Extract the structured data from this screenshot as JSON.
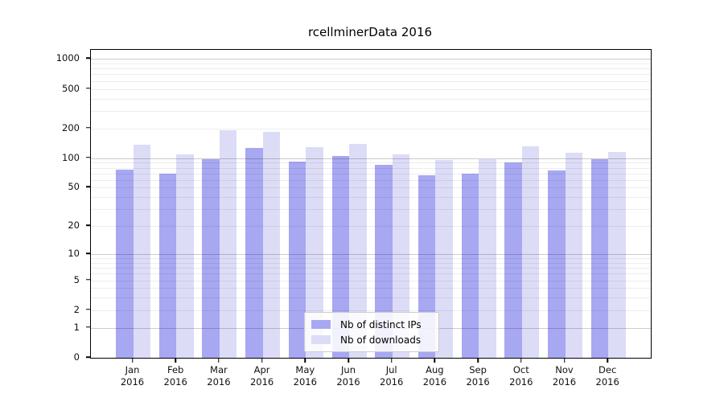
{
  "chart_data": {
    "type": "bar",
    "title": "rcellminerData 2016",
    "categories": [
      "Jan 2016",
      "Feb 2016",
      "Mar 2016",
      "Apr 2016",
      "May 2016",
      "Jun 2016",
      "Jul 2016",
      "Aug 2016",
      "Sep 2016",
      "Oct 2016",
      "Nov 2016",
      "Dec 2016"
    ],
    "series": [
      {
        "name": "Nb of distinct IPs",
        "color": "#a7a7f2",
        "values": [
          77,
          69,
          97,
          128,
          93,
          105,
          85,
          67,
          69,
          91,
          75,
          97
        ]
      },
      {
        "name": "Nb of downloads",
        "color": "#dcdcf7",
        "values": [
          137,
          110,
          192,
          183,
          130,
          139,
          110,
          96,
          98,
          131,
          113,
          115
        ]
      }
    ],
    "y_axis": {
      "scale": "log1p",
      "tick_values": [
        0,
        1,
        2,
        5,
        10,
        20,
        50,
        100,
        200,
        500,
        1000
      ],
      "tick_labels": [
        "0",
        "1",
        "2",
        "5",
        "10",
        "20",
        "50",
        "100",
        "200",
        "500",
        "1000"
      ],
      "range": [
        0,
        1000
      ]
    },
    "grid": {
      "minor_values": [
        2,
        3,
        4,
        5,
        6,
        7,
        8,
        9,
        20,
        30,
        40,
        50,
        60,
        70,
        80,
        90,
        200,
        300,
        400,
        500,
        600,
        700,
        800,
        900
      ],
      "major_values": [
        1,
        10,
        100,
        1000
      ]
    },
    "legend": {
      "position": "bottom-center"
    },
    "colors": {
      "spine": "#000000",
      "background": "#ffffff",
      "grid_major": "#cccccc",
      "grid_minor": "#ececec"
    }
  }
}
